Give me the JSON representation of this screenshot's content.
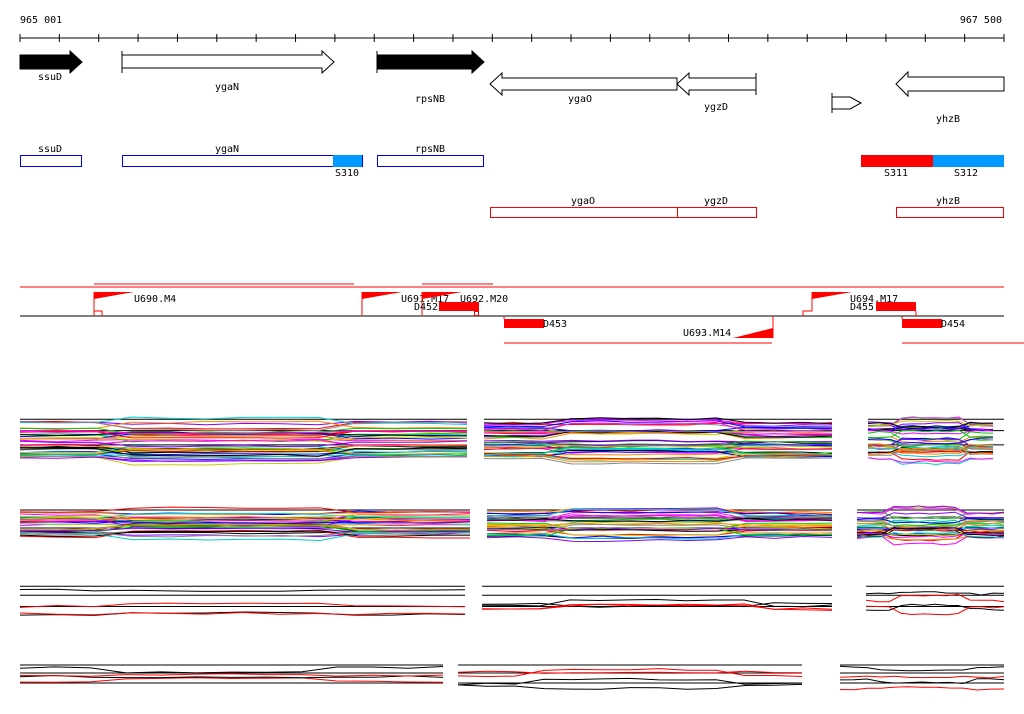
{
  "ruler": {
    "start_label": "965 001",
    "end_label": "967 500",
    "start": 965001,
    "end": 967500
  },
  "genes": [
    {
      "name": "ssuD",
      "strand": "+",
      "filled": true
    },
    {
      "name": "ygaN",
      "strand": "+",
      "filled": false
    },
    {
      "name": "rpsNB",
      "strand": "+",
      "filled": true
    },
    {
      "name": "ygaO",
      "strand": "-",
      "filled": false
    },
    {
      "name": "ygzD",
      "strand": "-",
      "filled": false
    },
    {
      "name": "",
      "strand": "+",
      "filled": false
    },
    {
      "name": "yhzB",
      "strand": "-",
      "filled": false
    }
  ],
  "blue_track": {
    "boxes": [
      "ssuD",
      "ygaN",
      "rpsNB"
    ],
    "segments": [
      "S310",
      "S311",
      "S312"
    ]
  },
  "red_track": {
    "boxes": [
      "ygaO",
      "ygzD",
      "yhzB"
    ]
  },
  "transcripts": {
    "upshifts": [
      "U690.M4",
      "U691.M17",
      "U692.M20",
      "U693.M14",
      "U694.M17"
    ],
    "downshifts": [
      "D452",
      "D453",
      "D455",
      "D454"
    ]
  },
  "colors": {
    "forward": "#0000ff",
    "reverse": "#ff0000",
    "segment_blue": "#0099ff",
    "segment_red": "#ff0000"
  }
}
